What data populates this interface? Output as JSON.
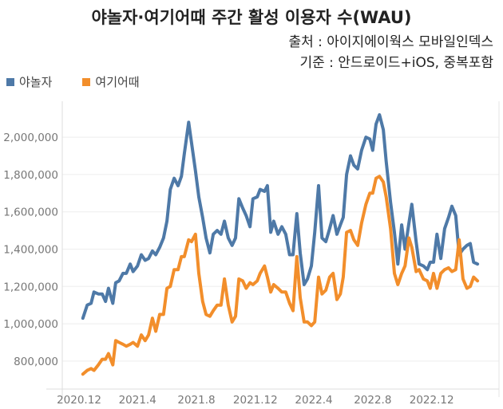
{
  "header": {
    "title": "야놀자·여기어때 주간 활성 이용자 수(WAU)",
    "source": "출처 : 아이지에이웍스 모바일인덱스",
    "basis": "기준 : 안드로이드+iOS, 중복포함"
  },
  "chart_data": {
    "type": "line",
    "title": "야놀자·여기어때 주간 활성 이용자 수(WAU)",
    "xlabel": "",
    "ylabel": "",
    "ylim": [
      650000,
      2150000
    ],
    "yticks": [
      800000,
      1000000,
      1200000,
      1400000,
      1600000,
      1800000,
      2000000
    ],
    "ytick_labels": [
      "800,000",
      "1,000,000",
      "1,200,000",
      "1,400,000",
      "1,600,000",
      "1,800,000",
      "2,000,000"
    ],
    "xticks": [
      {
        "date": "2020-12-01",
        "label": "2020.12"
      },
      {
        "date": "2021-04-01",
        "label": "2021.4"
      },
      {
        "date": "2021-08-01",
        "label": "2021.8"
      },
      {
        "date": "2021-12-01",
        "label": "2021.12"
      },
      {
        "date": "2022-04-01",
        "label": "2022.4"
      },
      {
        "date": "2022-08-01",
        "label": "2022.8"
      },
      {
        "date": "2022-12-01",
        "label": "2022.12"
      }
    ],
    "grid": true,
    "legend_position": "top-left",
    "x": [
      "2020-11-29",
      "2020-12-08",
      "2020-12-16",
      "2020-12-22",
      "2020-12-31",
      "2021-01-08",
      "2021-01-15",
      "2021-01-21",
      "2021-01-30",
      "2021-02-05",
      "2021-02-12",
      "2021-02-20",
      "2021-02-27",
      "2021-03-07",
      "2021-03-13",
      "2021-03-22",
      "2021-03-30",
      "2021-04-07",
      "2021-04-14",
      "2021-04-22",
      "2021-04-29",
      "2021-05-07",
      "2021-05-15",
      "2021-05-22",
      "2021-05-29",
      "2021-06-06",
      "2021-06-14",
      "2021-06-21",
      "2021-06-27",
      "2021-07-06",
      "2021-07-12",
      "2021-07-20",
      "2021-07-27",
      "2021-08-04",
      "2021-08-11",
      "2021-08-19",
      "2021-08-26",
      "2021-09-03",
      "2021-09-11",
      "2021-09-18",
      "2021-09-26",
      "2021-10-04",
      "2021-10-11",
      "2021-10-18",
      "2021-10-26",
      "2021-11-02",
      "2021-11-10",
      "2021-11-16",
      "2021-11-25",
      "2021-12-01",
      "2021-12-10",
      "2021-12-16",
      "2021-12-23",
      "2021-12-29",
      "2022-01-07",
      "2022-01-15",
      "2022-01-23",
      "2022-01-31",
      "2022-02-07",
      "2022-02-15",
      "2022-02-22",
      "2022-03-02",
      "2022-03-09",
      "2022-03-17",
      "2022-03-24",
      "2022-04-01",
      "2022-04-08",
      "2022-04-16",
      "2022-04-24",
      "2022-05-01",
      "2022-05-09",
      "2022-05-16",
      "2022-05-22",
      "2022-05-29",
      "2022-06-06",
      "2022-06-13",
      "2022-06-21",
      "2022-06-29",
      "2022-07-08",
      "2022-07-16",
      "2022-07-22",
      "2022-07-29",
      "2022-08-05",
      "2022-08-13",
      "2022-08-19",
      "2022-08-28",
      "2022-09-05",
      "2022-09-12",
      "2022-09-20",
      "2022-09-27",
      "2022-10-05",
      "2022-10-11",
      "2022-10-20",
      "2022-10-26",
      "2022-11-04",
      "2022-11-12",
      "2022-11-18",
      "2022-11-25",
      "2022-12-02",
      "2022-12-10",
      "2022-12-18",
      "2022-12-26",
      "2023-01-02",
      "2023-01-10",
      "2023-01-17",
      "2023-01-25",
      "2023-02-02",
      "2023-02-09",
      "2023-02-16",
      "2023-02-24"
    ],
    "series": [
      {
        "name": "야놀자",
        "color": "#4e79a7",
        "values": [
          1030000,
          1100000,
          1110000,
          1170000,
          1160000,
          1160000,
          1120000,
          1190000,
          1110000,
          1220000,
          1230000,
          1270000,
          1270000,
          1320000,
          1280000,
          1310000,
          1370000,
          1340000,
          1350000,
          1390000,
          1370000,
          1410000,
          1460000,
          1550000,
          1720000,
          1780000,
          1740000,
          1790000,
          1910000,
          2080000,
          1970000,
          1820000,
          1680000,
          1570000,
          1460000,
          1380000,
          1480000,
          1500000,
          1480000,
          1550000,
          1460000,
          1420000,
          1460000,
          1670000,
          1620000,
          1580000,
          1520000,
          1670000,
          1680000,
          1720000,
          1710000,
          1740000,
          1490000,
          1550000,
          1480000,
          1520000,
          1480000,
          1370000,
          1370000,
          1590000,
          1380000,
          1210000,
          1240000,
          1310000,
          1490000,
          1740000,
          1460000,
          1440000,
          1510000,
          1580000,
          1480000,
          1530000,
          1570000,
          1800000,
          1900000,
          1850000,
          1830000,
          1930000,
          2000000,
          1990000,
          1930000,
          2070000,
          2120000,
          2040000,
          1870000,
          1650000,
          1490000,
          1320000,
          1530000,
          1400000,
          1540000,
          1640000,
          1440000,
          1320000,
          1310000,
          1290000,
          1330000,
          1330000,
          1480000,
          1350000,
          1510000,
          1570000,
          1630000,
          1580000,
          1370000,
          1400000,
          1420000,
          1430000,
          1330000,
          1320000
        ]
      },
      {
        "name": "여기어때",
        "color": "#f28e2b",
        "values": [
          730000,
          750000,
          760000,
          750000,
          780000,
          810000,
          810000,
          840000,
          780000,
          910000,
          900000,
          890000,
          880000,
          890000,
          900000,
          880000,
          940000,
          910000,
          940000,
          1030000,
          960000,
          1050000,
          1050000,
          1190000,
          1200000,
          1290000,
          1290000,
          1360000,
          1360000,
          1450000,
          1440000,
          1480000,
          1270000,
          1120000,
          1050000,
          1040000,
          1070000,
          1100000,
          1100000,
          1240000,
          1100000,
          1010000,
          1040000,
          1240000,
          1230000,
          1190000,
          1220000,
          1210000,
          1230000,
          1270000,
          1310000,
          1250000,
          1170000,
          1210000,
          1190000,
          1170000,
          1170000,
          1110000,
          1070000,
          1360000,
          1140000,
          1010000,
          1010000,
          990000,
          1010000,
          1250000,
          1160000,
          1180000,
          1250000,
          1270000,
          1130000,
          1160000,
          1250000,
          1490000,
          1500000,
          1450000,
          1420000,
          1540000,
          1640000,
          1700000,
          1700000,
          1780000,
          1790000,
          1760000,
          1680000,
          1510000,
          1270000,
          1210000,
          1270000,
          1310000,
          1460000,
          1410000,
          1280000,
          1290000,
          1240000,
          1230000,
          1190000,
          1270000,
          1190000,
          1270000,
          1290000,
          1300000,
          1280000,
          1290000,
          1450000,
          1240000,
          1190000,
          1200000,
          1250000,
          1230000
        ]
      }
    ]
  }
}
